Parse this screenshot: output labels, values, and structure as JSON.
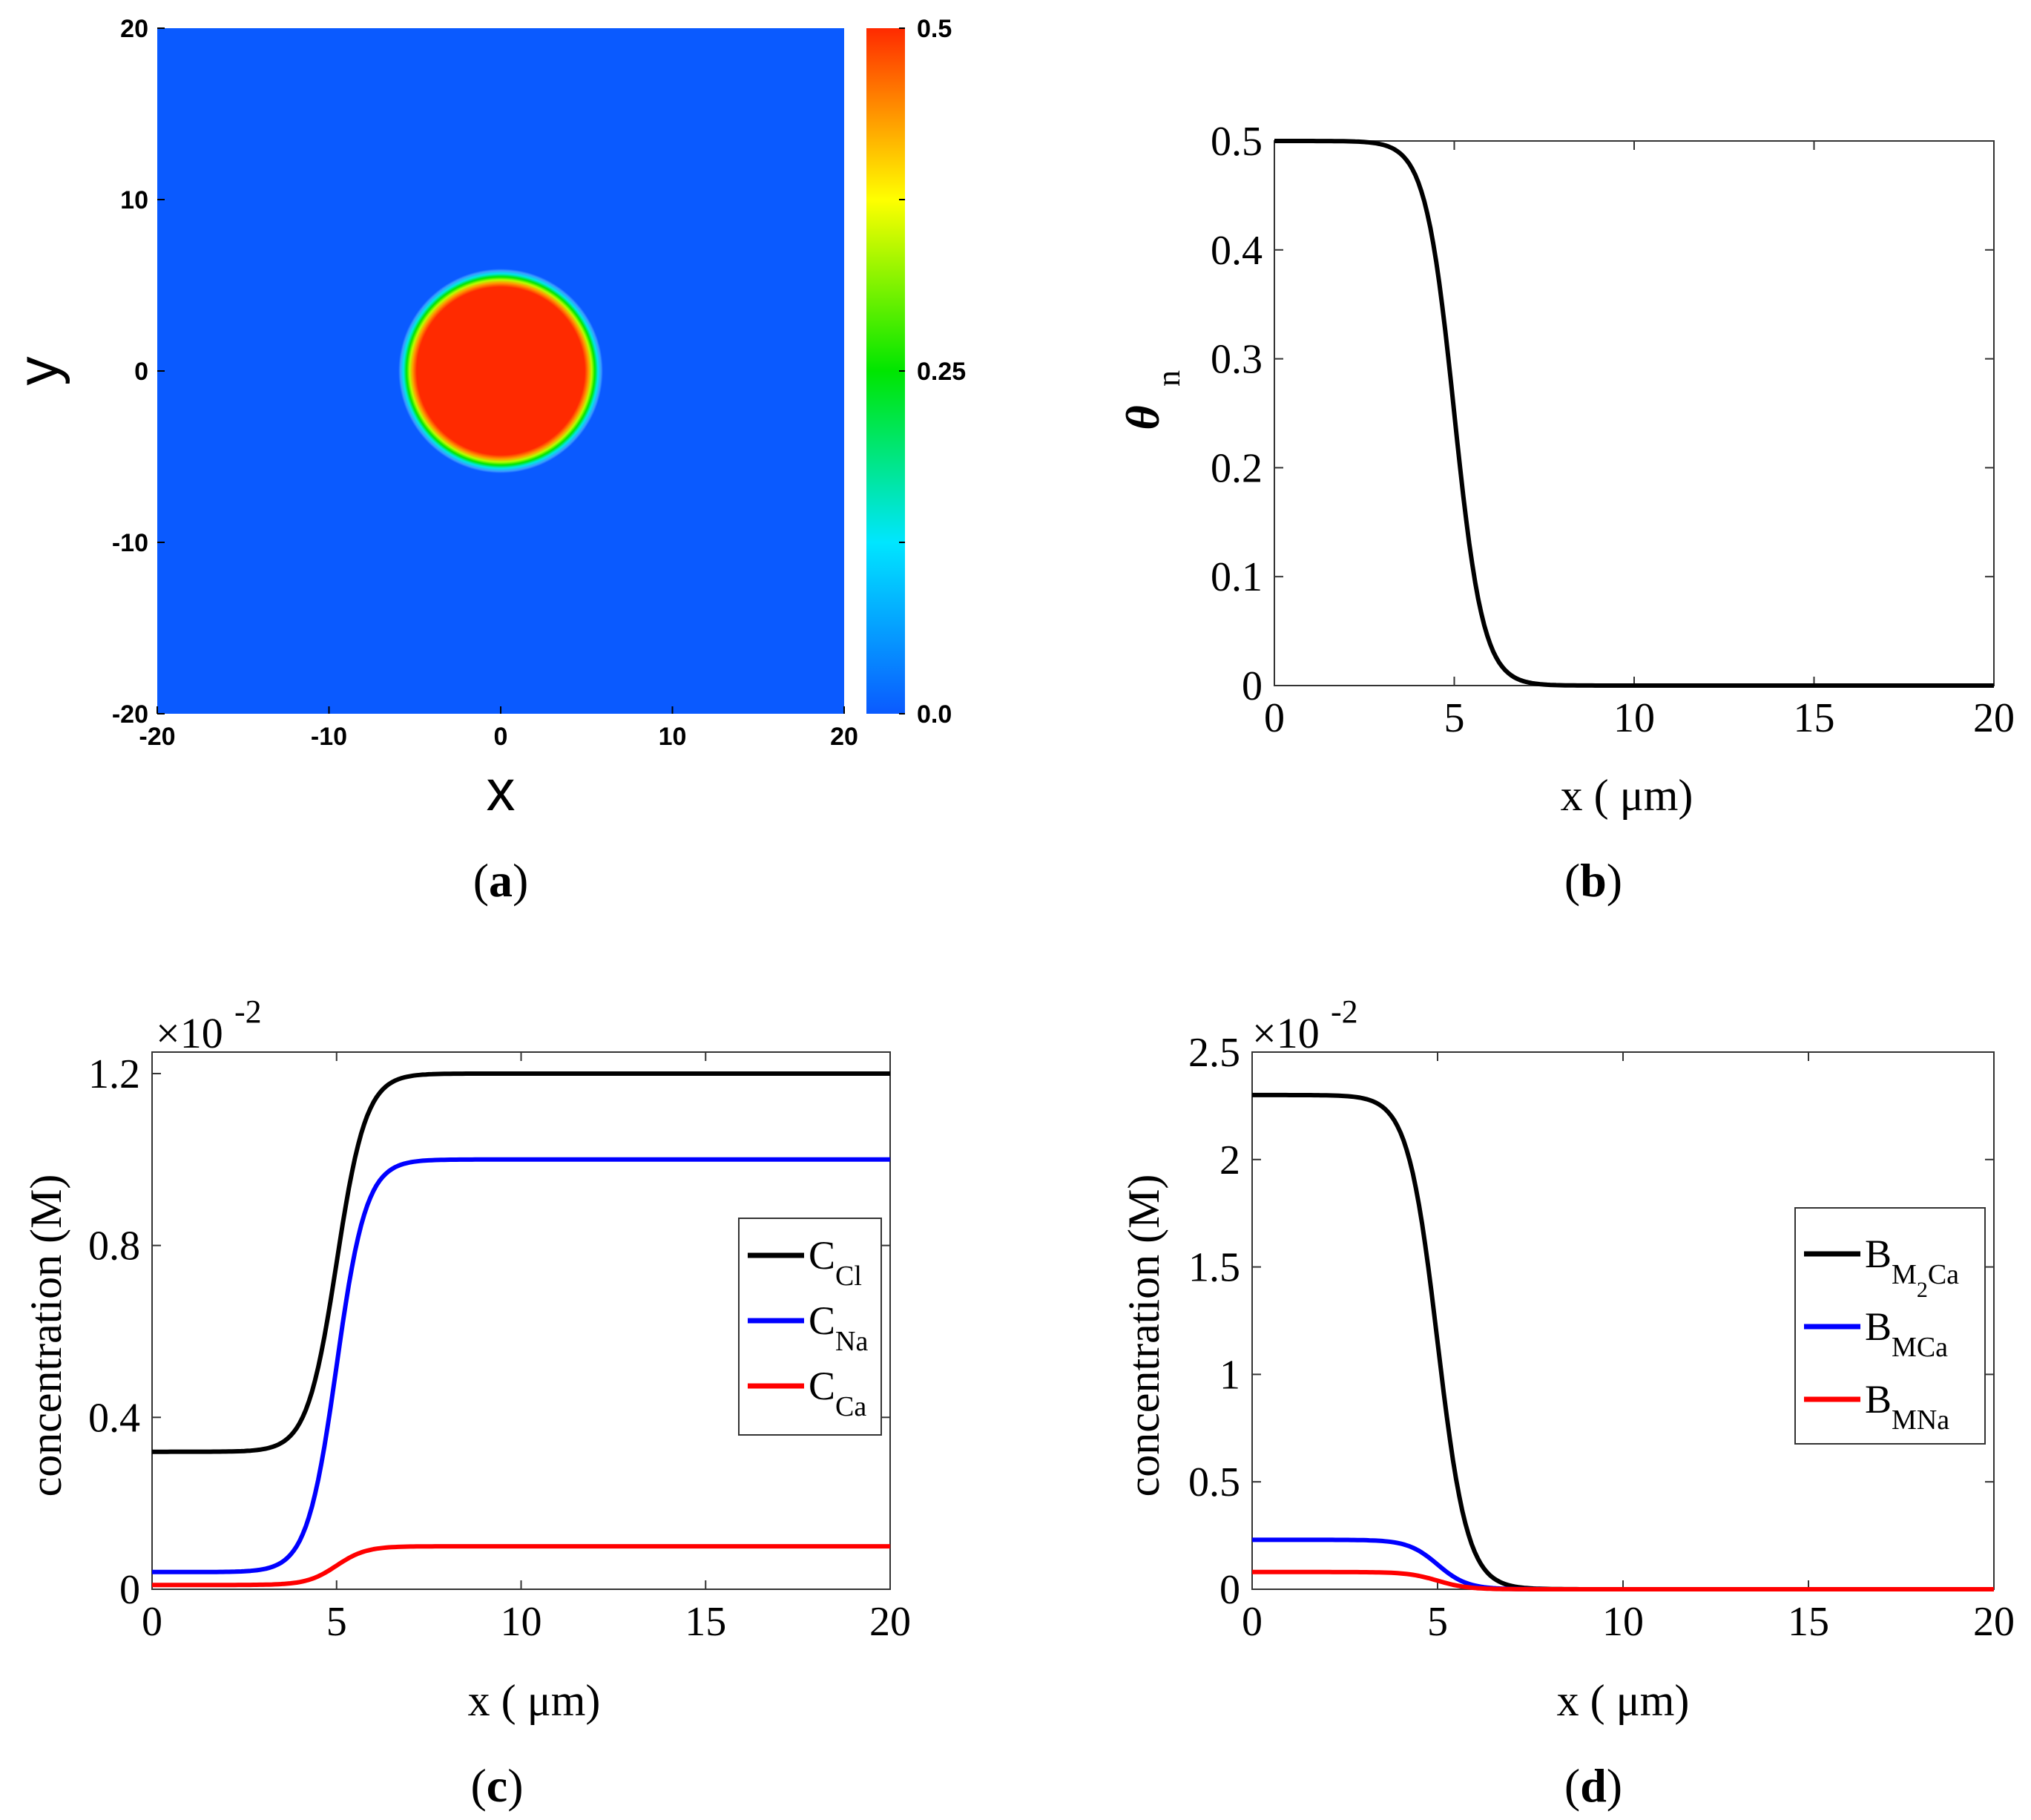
{
  "figure": {
    "captions": {
      "a": "a",
      "b": "b",
      "c": "c",
      "d": "d"
    }
  },
  "chart_data": [
    {
      "id": "a",
      "type": "heatmap",
      "xlabel": "x",
      "ylabel": "y",
      "xlim": [
        -20,
        20
      ],
      "ylim": [
        -20,
        20
      ],
      "xticks": [
        -20,
        -10,
        0,
        10,
        20
      ],
      "xtick_labels": [
        "-20",
        "-10",
        "0",
        "10",
        "20"
      ],
      "yticks": [
        -20,
        -10,
        0,
        10,
        20
      ],
      "ytick_labels": [
        "-20",
        "-10",
        "0",
        "10",
        "20"
      ],
      "field": {
        "shape": "circle",
        "center": [
          0,
          0
        ],
        "radius": 5,
        "inside_value": 0.5,
        "outside_value": 0.0,
        "interface_width": 0.8
      },
      "colorbar": {
        "range": [
          0.0,
          0.5
        ],
        "ticks": [
          0.0,
          0.25,
          0.5
        ],
        "tick_labels": [
          "0.0",
          "0.25",
          "0.5"
        ],
        "minor_ticks": [
          0.125,
          0.375
        ]
      },
      "colors": {
        "low": "#0a5aff",
        "mid": "#00e600",
        "high": "#ff2a00"
      }
    },
    {
      "id": "b",
      "type": "line",
      "xlabel": "x ( μm)",
      "ylabel": "θ",
      "ylabel_sub": "n",
      "xlim": [
        0,
        20
      ],
      "ylim": [
        0,
        0.5
      ],
      "xticks": [
        0,
        5,
        10,
        15,
        20
      ],
      "xtick_labels": [
        "0",
        "5",
        "10",
        "15",
        "20"
      ],
      "yticks": [
        0,
        0.1,
        0.2,
        0.3,
        0.4,
        0.5
      ],
      "ytick_labels": [
        "0",
        "0.1",
        "0.2",
        "0.3",
        "0.4",
        "0.5"
      ],
      "series": [
        {
          "name": "θn",
          "color": "#000000",
          "profile": {
            "left": 0.5,
            "right": 0.0,
            "center": 5,
            "width": 0.4
          }
        }
      ]
    },
    {
      "id": "c",
      "type": "line",
      "xlabel": "x ( μm)",
      "ylabel": "concentration (M)",
      "scale_label": "×10",
      "scale_exp": "-2",
      "xlim": [
        0,
        20
      ],
      "ylim": [
        0,
        1.25
      ],
      "xticks": [
        0,
        5,
        10,
        15,
        20
      ],
      "xtick_labels": [
        "0",
        "5",
        "10",
        "15",
        "20"
      ],
      "yticks": [
        0,
        0.4,
        0.8,
        1.2
      ],
      "ytick_labels": [
        "0",
        "0.4",
        "0.8",
        "1.2"
      ],
      "legend_position": "center-right",
      "series": [
        {
          "name": "C",
          "sub": "Cl",
          "color": "#000000",
          "profile": {
            "left": 0.32,
            "right": 1.2,
            "center": 5,
            "width": 0.4
          }
        },
        {
          "name": "C",
          "sub": "Na",
          "color": "#0000ff",
          "profile": {
            "left": 0.04,
            "right": 1.0,
            "center": 5,
            "width": 0.4
          }
        },
        {
          "name": "C",
          "sub": "Ca",
          "color": "#ff0000",
          "profile": {
            "left": 0.01,
            "right": 0.1,
            "center": 5,
            "width": 0.4
          }
        }
      ]
    },
    {
      "id": "d",
      "type": "line",
      "xlabel": "x ( μm)",
      "ylabel": "concentration (M)",
      "scale_label": "×10",
      "scale_exp": "-2",
      "xlim": [
        0,
        20
      ],
      "ylim": [
        0,
        2.5
      ],
      "xticks": [
        0,
        5,
        10,
        15,
        20
      ],
      "xtick_labels": [
        "0",
        "5",
        "10",
        "15",
        "20"
      ],
      "yticks": [
        0,
        0.5,
        1,
        1.5,
        2,
        2.5
      ],
      "ytick_labels": [
        "0",
        "0.5",
        "1",
        "1.5",
        "2",
        "2.5"
      ],
      "legend_position": "top-right",
      "series": [
        {
          "name": "B",
          "sub": "M",
          "sub2": "2",
          "sub3": "Ca",
          "color": "#000000",
          "profile": {
            "left": 2.3,
            "right": 0.0,
            "center": 5,
            "width": 0.4
          }
        },
        {
          "name": "B",
          "sub": "MCa",
          "color": "#0000ff",
          "profile": {
            "left": 0.23,
            "right": 0.0,
            "center": 5,
            "width": 0.4
          }
        },
        {
          "name": "B",
          "sub": "MNa",
          "color": "#ff0000",
          "profile": {
            "left": 0.08,
            "right": 0.0,
            "center": 5,
            "width": 0.4
          }
        }
      ]
    }
  ]
}
